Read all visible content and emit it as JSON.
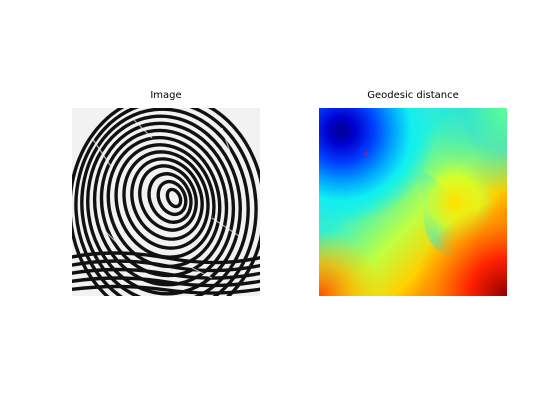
{
  "figure": {
    "left_title": "Image",
    "right_title": "Geodesic distance"
  },
  "colors": {
    "background": "#ffffff",
    "seed_marker": "#ff0000",
    "colormap": "jet"
  }
}
